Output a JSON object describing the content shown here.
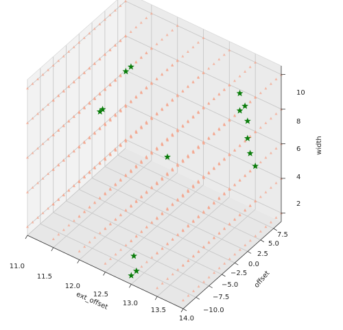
{
  "chart_data": {
    "type": "scatter",
    "projection": "3d",
    "xlabel": "ext_offset",
    "ylabel": "offset",
    "zlabel": "width",
    "x_ticks": [
      "11.0",
      "11.5",
      "12.0",
      "12.5",
      "13.0",
      "13.5",
      "14.0"
    ],
    "y_ticks": [
      "−10.0",
      "−7.5",
      "−5.0",
      "−2.5",
      "0.0",
      "2.5",
      "5.0",
      "7.5"
    ],
    "z_ticks": [
      "2",
      "4",
      "6",
      "8",
      "10"
    ],
    "xlim": [
      11,
      14
    ],
    "ylim": [
      -10,
      9
    ],
    "zlim": [
      1.5,
      10.5
    ],
    "grid": true,
    "series": [
      {
        "marker": "triangle",
        "color": "#f4a58e",
        "grid_x_from": 11,
        "grid_x_to": 14,
        "grid_x_step": 0.5,
        "grid_y_from": -10,
        "grid_y_to": 9,
        "grid_y_step": 1,
        "grid_z_from": 2,
        "grid_z_to": 10,
        "grid_z_step": 2
      },
      {
        "marker": "star",
        "color": "#0a7d0a",
        "points": [
          [
            13.0,
            -10.0,
            2.0
          ],
          [
            13.0,
            -9.0,
            2.0
          ],
          [
            13.0,
            -9.5,
            3.0
          ],
          [
            13.0,
            -3.0,
            7.0
          ],
          [
            12.0,
            -6.0,
            9.0
          ],
          [
            12.0,
            -5.5,
            9.0
          ],
          [
            12.0,
            -1.0,
            10.0
          ],
          [
            12.0,
            0.0,
            10.0
          ],
          [
            13.5,
            6.0,
            9.0
          ],
          [
            13.5,
            6.0,
            8.0
          ],
          [
            13.5,
            7.0,
            8.0
          ],
          [
            13.5,
            7.5,
            7.0
          ],
          [
            13.5,
            7.5,
            6.0
          ],
          [
            13.5,
            8.0,
            5.0
          ],
          [
            13.5,
            9.0,
            4.0
          ]
        ]
      }
    ]
  }
}
